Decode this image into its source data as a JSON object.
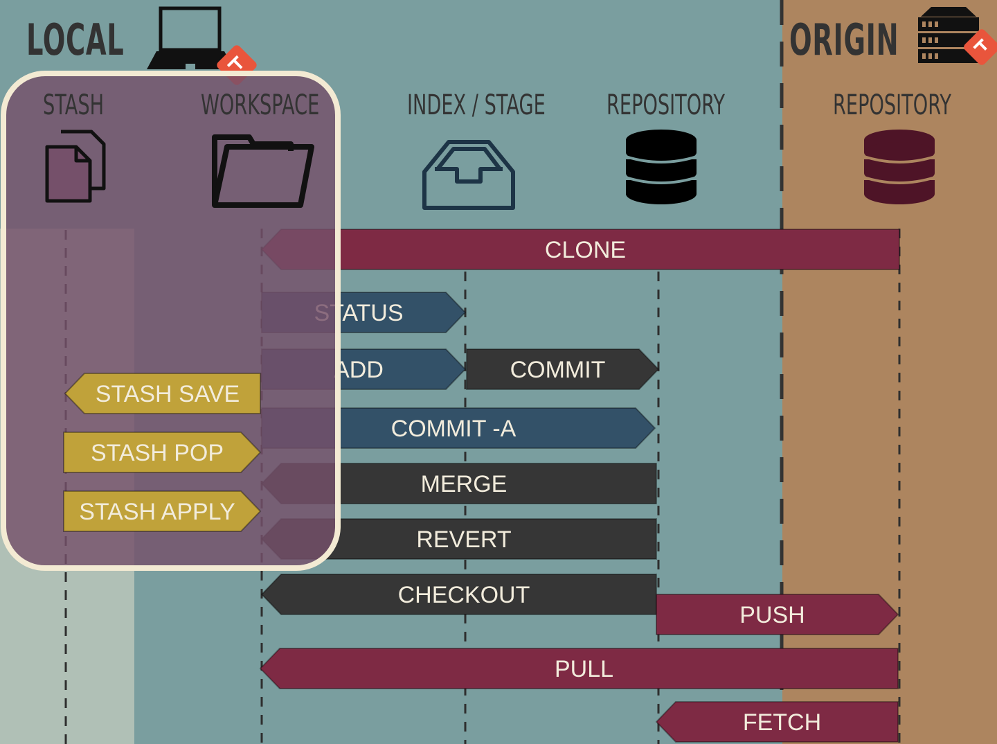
{
  "titles": {
    "local": "LOCAL",
    "origin": "ORIGIN"
  },
  "columns": {
    "stash": "STASH",
    "workspace": "WORKSPACE",
    "index": "INDEX / STAGE",
    "local_repository": "REPOSITORY",
    "origin_repository": "REPOSITORY"
  },
  "icons": {
    "laptop": "laptop-icon",
    "server": "server-icon",
    "git_badge": "git-logo-icon",
    "stash": "documents-icon",
    "workspace": "folder-icon",
    "index": "inbox-tray-icon",
    "repository": "database-icon"
  },
  "commands": {
    "clone": "CLONE",
    "status": "STATUS",
    "add": "ADD",
    "commit": "COMMIT",
    "stash_save": "STASH SAVE",
    "commit_a": "COMMIT -A",
    "stash_pop": "STASH POP",
    "merge": "MERGE",
    "stash_apply": "STASH APPLY",
    "revert": "REVERT",
    "checkout": "CHECKOUT",
    "push": "PUSH",
    "pull": "PULL",
    "fetch": "FETCH"
  },
  "colors": {
    "background": "#7a9e9f",
    "origin_background": "#ad855f",
    "stash_strip": "#b0c0b6",
    "remote_arrow": "#7e2a44",
    "local_arrow": "#335168",
    "repo_arrow": "#363636",
    "stash_arrow": "#c0a23a",
    "highlight_border": "#f3ead3",
    "highlight_fill": "#75506a",
    "origin_db": "#4e1427",
    "text_light": "#f2ecdc"
  }
}
